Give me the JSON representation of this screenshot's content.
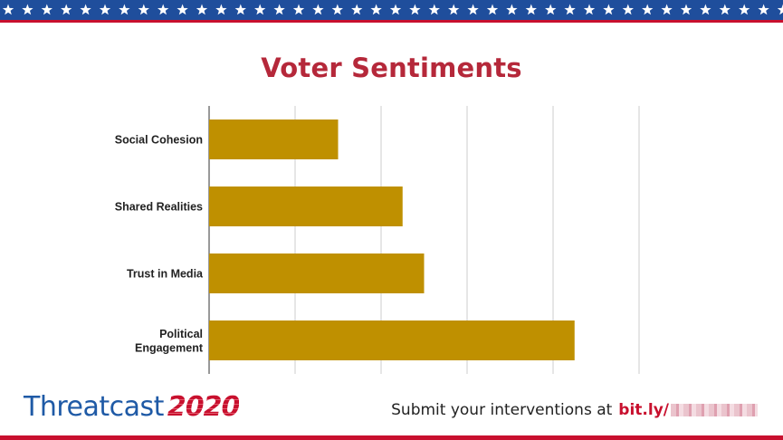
{
  "banner": {
    "bg_color": "#1f4e9c",
    "star_color": "#ffffff",
    "border_color": "#c8102e"
  },
  "chart_data": {
    "type": "bar",
    "orientation": "horizontal",
    "title": "Voter Sentiments",
    "categories": [
      "Social Cohesion",
      "Shared Realities",
      "Trust in Media",
      "Political Engagement"
    ],
    "values": [
      1.5,
      2.25,
      2.5,
      4.25
    ],
    "xlim": [
      0,
      5
    ],
    "grid": true,
    "bar_color": "#bf9000",
    "title_color": "#b5283a"
  },
  "footer": {
    "brand_word": "Threatcast",
    "brand_year": "2020",
    "cta_text": "Submit your interventions at",
    "link_text": "bit.ly/"
  }
}
